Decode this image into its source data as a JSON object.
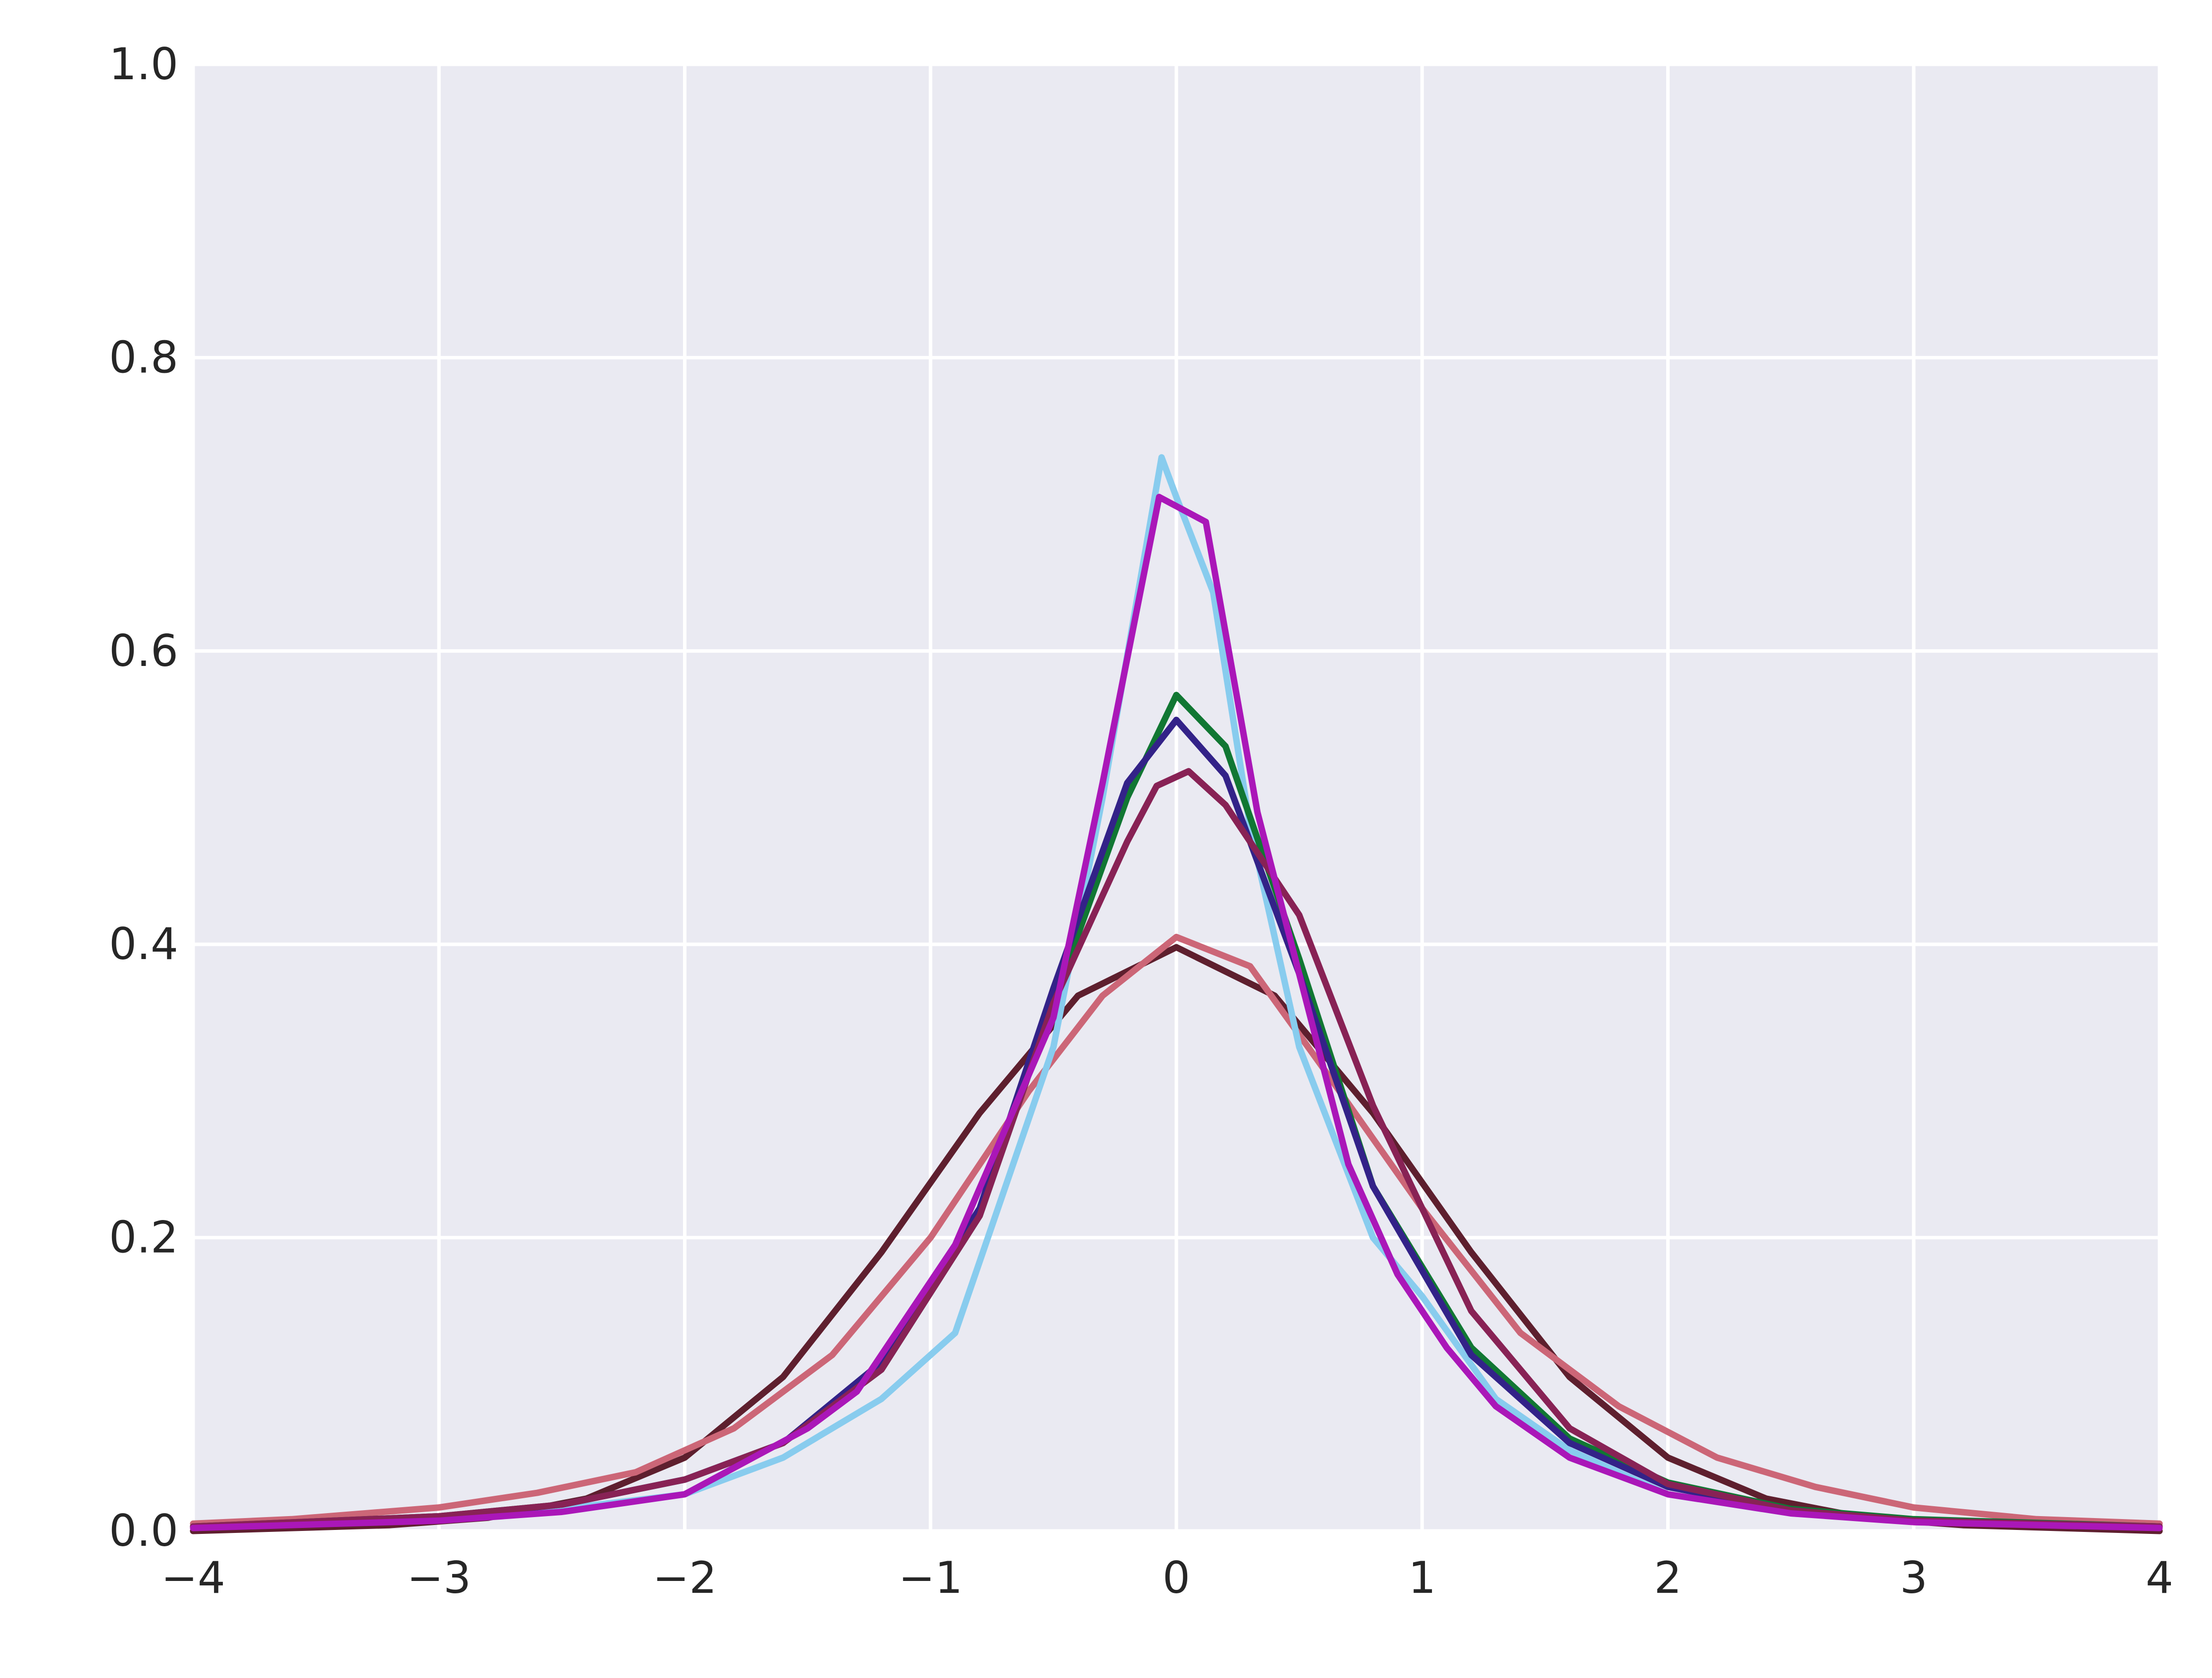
{
  "chart_data": {
    "type": "line",
    "title": "",
    "xlabel": "",
    "ylabel": "",
    "xlim": [
      -4,
      4
    ],
    "ylim": [
      0,
      1.0
    ],
    "grid": true,
    "background": "#eaeaf2",
    "grid_color": "#ffffff",
    "x_ticks": [
      -4,
      -3,
      -2,
      -1,
      0,
      1,
      2,
      3,
      4
    ],
    "x_tick_labels": [
      "−4",
      "−3",
      "−2",
      "−1",
      "0",
      "1",
      "2",
      "3",
      "4"
    ],
    "y_ticks": [
      0,
      0.2,
      0.4,
      0.6,
      0.8,
      1.0
    ],
    "y_tick_labels": [
      "0.0",
      "0.2",
      "0.4",
      "0.6",
      "0.8",
      "1.0"
    ],
    "series": [
      {
        "color": "#5e1f2e",
        "points": [
          [
            -4,
            0.0
          ],
          [
            -3.6,
            0.002
          ],
          [
            -3.2,
            0.004
          ],
          [
            -2.8,
            0.009
          ],
          [
            -2.4,
            0.022
          ],
          [
            -2.0,
            0.05
          ],
          [
            -1.6,
            0.105
          ],
          [
            -1.2,
            0.19
          ],
          [
            -0.8,
            0.285
          ],
          [
            -0.4,
            0.365
          ],
          [
            0,
            0.398
          ],
          [
            0.4,
            0.365
          ],
          [
            0.8,
            0.285
          ],
          [
            1.2,
            0.19
          ],
          [
            1.6,
            0.105
          ],
          [
            2.0,
            0.05
          ],
          [
            2.4,
            0.022
          ],
          [
            2.8,
            0.009
          ],
          [
            3.2,
            0.004
          ],
          [
            3.6,
            0.002
          ],
          [
            4,
            0.0
          ]
        ]
      },
      {
        "color": "#cc6677",
        "points": [
          [
            -4,
            0.005
          ],
          [
            -3.6,
            0.008
          ],
          [
            -3.0,
            0.016
          ],
          [
            -2.6,
            0.026
          ],
          [
            -2.2,
            0.04
          ],
          [
            -1.8,
            0.07
          ],
          [
            -1.4,
            0.12
          ],
          [
            -1.0,
            0.2
          ],
          [
            -0.6,
            0.3
          ],
          [
            -0.3,
            0.365
          ],
          [
            0,
            0.405
          ],
          [
            0.3,
            0.385
          ],
          [
            0.6,
            0.315
          ],
          [
            1.0,
            0.22
          ],
          [
            1.4,
            0.135
          ],
          [
            1.8,
            0.085
          ],
          [
            2.2,
            0.05
          ],
          [
            2.6,
            0.03
          ],
          [
            3.0,
            0.016
          ],
          [
            3.5,
            0.008
          ],
          [
            4,
            0.005
          ]
        ]
      },
      {
        "color": "#88ccee",
        "points": [
          [
            -4,
            0.003
          ],
          [
            -3.0,
            0.008
          ],
          [
            -2.5,
            0.015
          ],
          [
            -2.0,
            0.025
          ],
          [
            -1.6,
            0.05
          ],
          [
            -1.2,
            0.09
          ],
          [
            -0.9,
            0.135
          ],
          [
            -0.5,
            0.33
          ],
          [
            -0.3,
            0.5
          ],
          [
            -0.06,
            0.732
          ],
          [
            0.0,
            0.705
          ],
          [
            0.15,
            0.64
          ],
          [
            0.3,
            0.48
          ],
          [
            0.5,
            0.33
          ],
          [
            0.8,
            0.2
          ],
          [
            1.0,
            0.16
          ],
          [
            1.3,
            0.09
          ],
          [
            1.6,
            0.055
          ],
          [
            2.0,
            0.025
          ],
          [
            2.5,
            0.012
          ],
          [
            3.0,
            0.007
          ],
          [
            4,
            0.003
          ]
        ]
      },
      {
        "color": "#117733",
        "points": [
          [
            -4,
            0.003
          ],
          [
            -3.0,
            0.01
          ],
          [
            -2.5,
            0.018
          ],
          [
            -2.0,
            0.035
          ],
          [
            -1.6,
            0.06
          ],
          [
            -1.2,
            0.11
          ],
          [
            -0.8,
            0.215
          ],
          [
            -0.5,
            0.36
          ],
          [
            -0.2,
            0.5
          ],
          [
            0.0,
            0.57
          ],
          [
            0.2,
            0.535
          ],
          [
            0.5,
            0.39
          ],
          [
            0.8,
            0.235
          ],
          [
            1.2,
            0.125
          ],
          [
            1.6,
            0.063
          ],
          [
            2.0,
            0.033
          ],
          [
            2.5,
            0.015
          ],
          [
            3.0,
            0.008
          ],
          [
            4,
            0.003
          ]
        ]
      },
      {
        "color": "#332288",
        "points": [
          [
            -4,
            0.003
          ],
          [
            -3.0,
            0.009
          ],
          [
            -2.5,
            0.018
          ],
          [
            -2.0,
            0.035
          ],
          [
            -1.6,
            0.06
          ],
          [
            -1.2,
            0.115
          ],
          [
            -0.8,
            0.22
          ],
          [
            -0.5,
            0.37
          ],
          [
            -0.2,
            0.51
          ],
          [
            0.0,
            0.553
          ],
          [
            0.2,
            0.515
          ],
          [
            0.5,
            0.38
          ],
          [
            0.8,
            0.235
          ],
          [
            1.2,
            0.12
          ],
          [
            1.6,
            0.06
          ],
          [
            2.0,
            0.03
          ],
          [
            2.5,
            0.014
          ],
          [
            3.0,
            0.007
          ],
          [
            4,
            0.003
          ]
        ]
      },
      {
        "color": "#882255",
        "points": [
          [
            -4,
            0.003
          ],
          [
            -3.0,
            0.01
          ],
          [
            -2.5,
            0.018
          ],
          [
            -2.0,
            0.035
          ],
          [
            -1.6,
            0.06
          ],
          [
            -1.2,
            0.11
          ],
          [
            -0.8,
            0.215
          ],
          [
            -0.5,
            0.36
          ],
          [
            -0.2,
            0.47
          ],
          [
            -0.08,
            0.508
          ],
          [
            0.05,
            0.518
          ],
          [
            0.2,
            0.495
          ],
          [
            0.5,
            0.42
          ],
          [
            0.8,
            0.29
          ],
          [
            1.2,
            0.15
          ],
          [
            1.6,
            0.07
          ],
          [
            2.0,
            0.032
          ],
          [
            2.5,
            0.014
          ],
          [
            3.0,
            0.007
          ],
          [
            4,
            0.003
          ]
        ]
      },
      {
        "color": "#aa17b8",
        "points": [
          [
            -4,
            0.002
          ],
          [
            -3.0,
            0.007
          ],
          [
            -2.5,
            0.013
          ],
          [
            -2.0,
            0.025
          ],
          [
            -1.5,
            0.07
          ],
          [
            -1.3,
            0.095
          ],
          [
            -0.9,
            0.195
          ],
          [
            -0.5,
            0.35
          ],
          [
            -0.3,
            0.51
          ],
          [
            -0.07,
            0.705
          ],
          [
            0.12,
            0.688
          ],
          [
            0.33,
            0.49
          ],
          [
            0.7,
            0.25
          ],
          [
            0.9,
            0.175
          ],
          [
            1.1,
            0.125
          ],
          [
            1.3,
            0.085
          ],
          [
            1.6,
            0.05
          ],
          [
            2.0,
            0.025
          ],
          [
            2.5,
            0.012
          ],
          [
            3.0,
            0.006
          ],
          [
            4,
            0.002
          ]
        ]
      }
    ]
  }
}
